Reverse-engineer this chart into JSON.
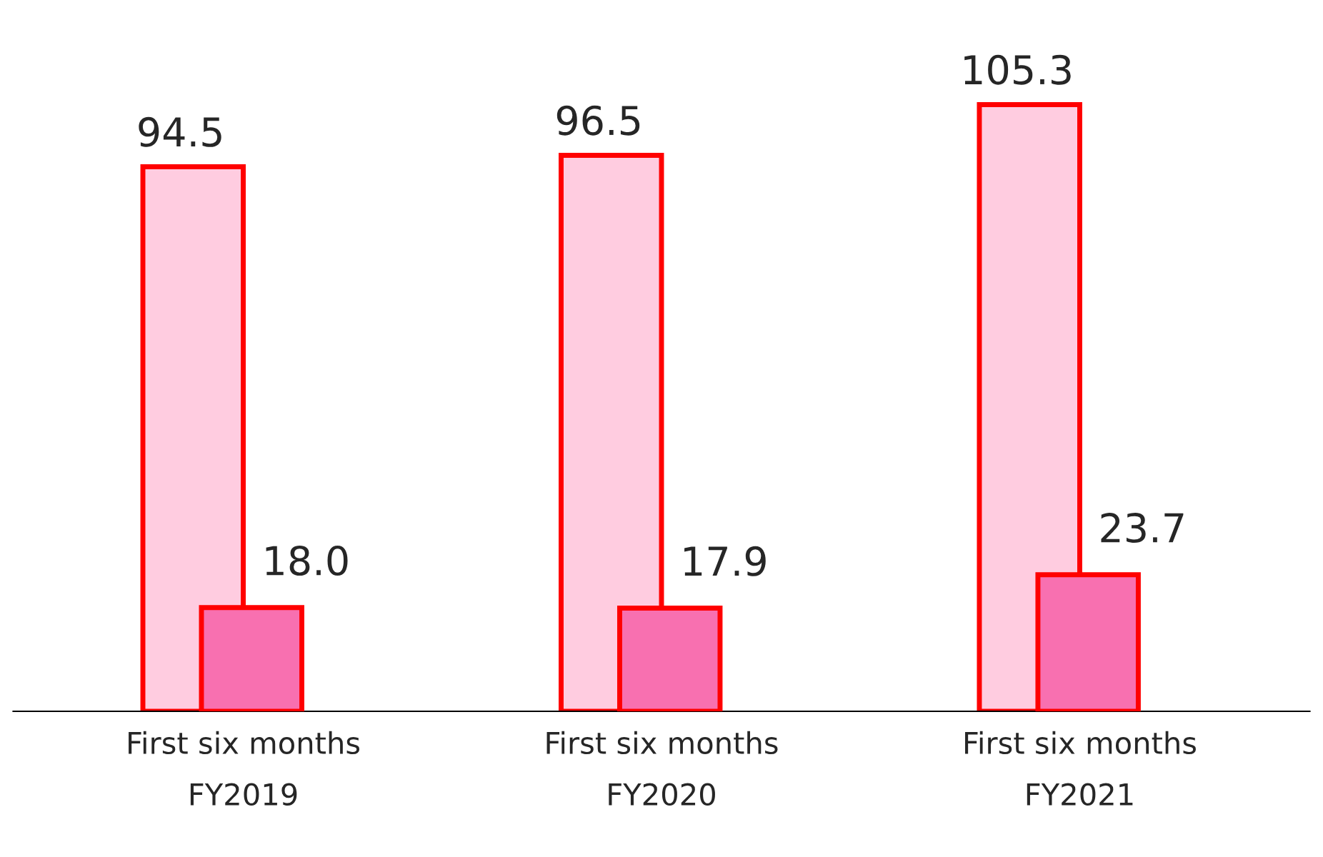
{
  "chart_data": {
    "type": "bar",
    "categories": [
      "First six months\nFY2019",
      "First six months\nFY2020",
      "First six months\nFY2021"
    ],
    "series": [
      {
        "color": "#ffcce0",
        "values": [
          94.5,
          96.5,
          105.3
        ],
        "value_labels": [
          "94.5",
          "96.5",
          "105.3"
        ]
      },
      {
        "color": "#f870b0",
        "values": [
          18.0,
          17.9,
          23.7
        ],
        "value_labels": [
          "18.0",
          "17.9",
          "23.7"
        ]
      }
    ],
    "grid": false,
    "legend": false
  }
}
